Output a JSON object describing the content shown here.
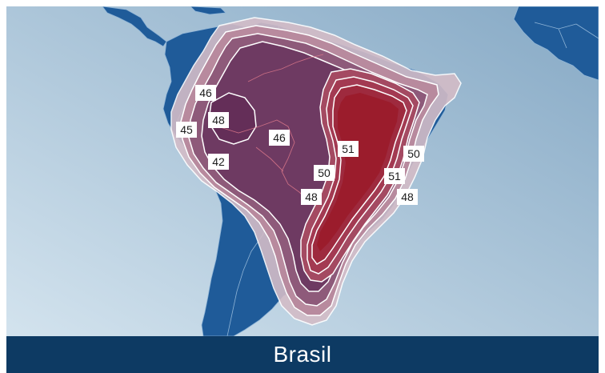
{
  "map": {
    "region_title": "Brasil",
    "colors": {
      "ocean_light": "#c9dbe8",
      "ocean_dark": "#8fb0cb",
      "land": "#1f5b99",
      "land_border": "#8fb4d6",
      "footer": "#0d3a63",
      "contour_line": "#ffffff",
      "contour_fill_outer": "#d9c2cc",
      "contour_fill_inner": "#9b1c2c",
      "label_bg": "#ffffff"
    },
    "contour_labels": [
      {
        "id": "46-north",
        "text": "46"
      },
      {
        "id": "48-west",
        "text": "48"
      },
      {
        "id": "45-west",
        "text": "45"
      },
      {
        "id": "46-center",
        "text": "46"
      },
      {
        "id": "42-west",
        "text": "42"
      },
      {
        "id": "51-center",
        "text": "51"
      },
      {
        "id": "50-center",
        "text": "50"
      },
      {
        "id": "48-center",
        "text": "48"
      },
      {
        "id": "50-east",
        "text": "50"
      },
      {
        "id": "51-east",
        "text": "51"
      },
      {
        "id": "48-east",
        "text": "48"
      }
    ]
  }
}
